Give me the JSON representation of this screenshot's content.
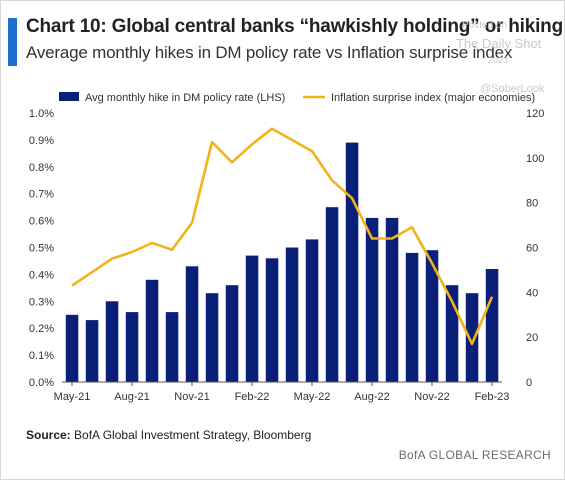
{
  "header": {
    "title": "Chart 10: Global central banks “hawkishly holding” or hiking",
    "subtitle": "Average monthly hikes in DM policy rate vs Inflation surprise index"
  },
  "watermark": {
    "line1": "Posted on",
    "line2": "The Daily Shot",
    "line3": "2023",
    "line4": "@SoberLook"
  },
  "footer": {
    "source_label": "Source:",
    "source_text": "BofA Global Investment Strategy, Bloomberg",
    "brand": "BofA GLOBAL RESEARCH"
  },
  "colors": {
    "bar": "#0a1f78",
    "line": "#f2b21a",
    "accent": "#1f6fd1"
  },
  "chart_data": {
    "type": "bar",
    "legend_position": "top",
    "grid": false,
    "x_tick_labels": [
      "May-21",
      "Aug-21",
      "Nov-21",
      "Feb-22",
      "May-22",
      "Aug-22",
      "Nov-22",
      "Feb-23"
    ],
    "x_tick_every": 3,
    "left_axis": {
      "ticks": [
        "0.0%",
        "0.1%",
        "0.2%",
        "0.3%",
        "0.4%",
        "0.5%",
        "0.6%",
        "0.7%",
        "0.8%",
        "0.9%",
        "1.0%"
      ],
      "ylim": [
        0,
        1.0
      ]
    },
    "right_axis": {
      "ticks": [
        "0",
        "20",
        "40",
        "60",
        "80",
        "100",
        "120"
      ],
      "ylim": [
        0,
        120
      ]
    },
    "series": [
      {
        "name": "Avg monthly hike in DM policy rate (LHS)",
        "type": "bar",
        "axis": "left",
        "values": [
          0.25,
          0.23,
          0.3,
          0.26,
          0.38,
          0.26,
          0.43,
          0.33,
          0.36,
          0.47,
          0.46,
          0.5,
          0.53,
          0.65,
          0.89,
          0.61,
          0.61,
          0.48,
          0.49,
          0.36,
          0.33,
          0.42
        ]
      },
      {
        "name": "Inflation surprise index (major economies)",
        "type": "line",
        "axis": "right",
        "values": [
          43,
          49,
          55,
          58,
          62,
          59,
          71,
          107,
          98,
          106,
          113,
          108,
          103,
          90,
          82,
          64,
          64,
          69,
          53,
          36,
          17,
          38
        ]
      }
    ]
  }
}
